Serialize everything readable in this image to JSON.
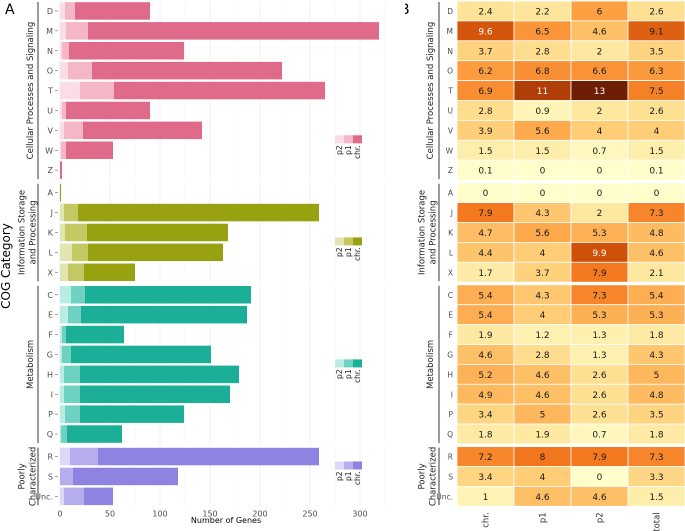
{
  "panel_a_label": "A",
  "panel_b_label": "B",
  "y_axis_title": "COG Category",
  "x_axis_title": "Number of Genes",
  "x_ticks": [
    "0",
    "50",
    "100",
    "150",
    "200",
    "250",
    "300"
  ],
  "heatmap_columns": [
    "chr.",
    "p1",
    "p2",
    "total"
  ],
  "legend_labels": [
    "p2",
    "p1",
    "chr."
  ],
  "groups": [
    {
      "lines": [
        "Cellular Processes and Signaling"
      ],
      "color": "#e06a8a",
      "light": "#f5b6c7",
      "lighter": "#fbdde6"
    },
    {
      "lines": [
        "Information Storage",
        "and Processing"
      ],
      "color": "#98a110",
      "light": "#c4c863",
      "lighter": "#e3e5b0"
    },
    {
      "lines": [
        "Metabolism"
      ],
      "color": "#1aaf96",
      "light": "#6fd2c1",
      "lighter": "#b9ece3"
    },
    {
      "lines": [
        "Poorly",
        "Characterized"
      ],
      "color": "#8f83e2",
      "light": "#b6adef",
      "lighter": "#dcd8f8"
    }
  ],
  "chart_data": [
    {
      "type": "bar",
      "title": "",
      "xlabel": "Number of Genes",
      "ylabel": "COG Category",
      "xlim": [
        0,
        330
      ],
      "stacked": true,
      "categories": [
        "D",
        "M",
        "N",
        "O",
        "T",
        "U",
        "V",
        "W",
        "Z",
        "A",
        "J",
        "K",
        "L",
        "X",
        "C",
        "E",
        "F",
        "G",
        "H",
        "I",
        "P",
        "Q",
        "R",
        "S",
        "Unc."
      ],
      "group_index": [
        0,
        0,
        0,
        0,
        0,
        0,
        0,
        0,
        0,
        1,
        1,
        1,
        1,
        1,
        2,
        2,
        2,
        2,
        2,
        2,
        2,
        2,
        3,
        3,
        3
      ],
      "series": [
        {
          "name": "p2",
          "values": [
            5,
            6,
            2,
            8,
            20,
            2,
            4,
            1,
            0,
            0,
            4,
            5,
            12,
            8,
            11,
            8,
            2,
            2,
            4,
            4,
            5,
            1,
            10,
            0,
            4
          ]
        },
        {
          "name": "p1",
          "values": [
            10,
            22,
            7,
            24,
            34,
            4,
            19,
            5,
            0,
            0,
            14,
            22,
            16,
            16,
            14,
            13,
            4,
            9,
            16,
            16,
            15,
            6,
            28,
            13,
            20
          ]
        },
        {
          "name": "chr.",
          "values": [
            75,
            291,
            115,
            190,
            211,
            84,
            119,
            47,
            2,
            1,
            241,
            141,
            135,
            51,
            166,
            166,
            58,
            140,
            159,
            150,
            104,
            55,
            221,
            105,
            29
          ]
        }
      ]
    },
    {
      "type": "heatmap",
      "x": [
        "chr.",
        "p1",
        "p2",
        "total"
      ],
      "y": [
        "D",
        "M",
        "N",
        "O",
        "T",
        "U",
        "V",
        "W",
        "Z",
        "A",
        "J",
        "K",
        "L",
        "X",
        "C",
        "E",
        "F",
        "G",
        "H",
        "I",
        "P",
        "Q",
        "R",
        "S",
        "Unc."
      ],
      "values": [
        [
          "2.4",
          "2.2",
          "6",
          "2.6"
        ],
        [
          "9.6",
          "6.5",
          "4.6",
          "9.1"
        ],
        [
          "3.7",
          "2.8",
          "2",
          "3.5"
        ],
        [
          "6.2",
          "6.8",
          "6.6",
          "6.3"
        ],
        [
          "6.9",
          "11",
          "13",
          "7.5"
        ],
        [
          "2.8",
          "0.9",
          "2",
          "2.6"
        ],
        [
          "3.9",
          "5.6",
          "4",
          "4"
        ],
        [
          "1.5",
          "1.5",
          "0.7",
          "1.5"
        ],
        [
          "0.1",
          "0",
          "0",
          "0.1"
        ],
        [
          "0",
          "0",
          "0",
          "0"
        ],
        [
          "7.9",
          "4.3",
          "2",
          "7.3"
        ],
        [
          "4.7",
          "5.6",
          "5.3",
          "4.8"
        ],
        [
          "4.4",
          "4",
          "9.9",
          "4.6"
        ],
        [
          "1.7",
          "3.7",
          "7.9",
          "2.1"
        ],
        [
          "5.4",
          "4.3",
          "7.3",
          "5.4"
        ],
        [
          "5.4",
          "4",
          "5.3",
          "5.3"
        ],
        [
          "1.9",
          "1.2",
          "1.3",
          "1.8"
        ],
        [
          "4.6",
          "2.8",
          "1.3",
          "4.3"
        ],
        [
          "5.2",
          "4.6",
          "2.6",
          "5"
        ],
        [
          "4.9",
          "4.6",
          "2.6",
          "4.8"
        ],
        [
          "3.4",
          "5",
          "2.6",
          "3.5"
        ],
        [
          "1.8",
          "1.9",
          "0.7",
          "1.8"
        ],
        [
          "7.2",
          "8",
          "7.9",
          "7.3"
        ],
        [
          "3.4",
          "4",
          "0",
          "3.3"
        ],
        [
          "1",
          "4.6",
          "4.6",
          "1.5"
        ]
      ]
    }
  ]
}
